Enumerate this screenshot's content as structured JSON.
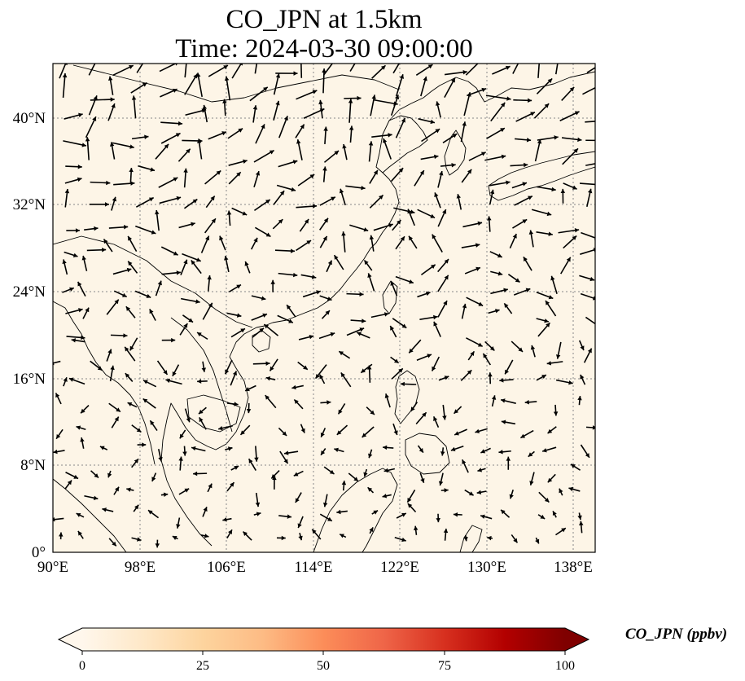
{
  "title": {
    "line1": "CO_JPN at 1.5km",
    "line2": "Time: 2024-03-30 09:00:00"
  },
  "map": {
    "projection": "PlateCarree",
    "lon_range": [
      90,
      140
    ],
    "lat_range": [
      0,
      45
    ],
    "background_color": "#fdf5e7",
    "coastline_color": "#000000",
    "gridlines": "dotted",
    "lon_ticks": [
      "90°E",
      "98°E",
      "106°E",
      "114°E",
      "122°E",
      "130°E",
      "138°E"
    ],
    "lat_ticks": [
      "0°",
      "8°N",
      "16°N",
      "24°N",
      "32°N",
      "40°N"
    ],
    "field": "wind vectors over CO concentration"
  },
  "colorbar": {
    "label": "CO_JPN (ppbv)",
    "ticks": [
      "0",
      "25",
      "50",
      "75",
      "100"
    ],
    "min": 0,
    "max": 100,
    "colormap": "OrRd",
    "colors": [
      "#fff7ec",
      "#fee8c8",
      "#fdd49e",
      "#fdbb84",
      "#fc8d59",
      "#ef6548",
      "#d7301f",
      "#b30000",
      "#7f0000"
    ],
    "extend": "both"
  }
}
